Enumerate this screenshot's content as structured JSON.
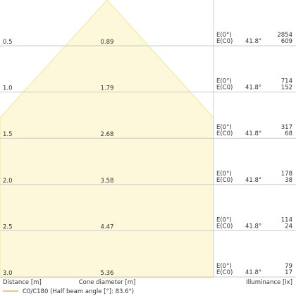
{
  "rows": [
    {
      "distance": "0.5",
      "diameter": "0.89",
      "label_top": "E(0°)",
      "label_bottom": "E(C0)",
      "angle": "41.8°",
      "value_top": "2854",
      "value_bottom": "609"
    },
    {
      "distance": "1.0",
      "diameter": "1.79",
      "label_top": "E(0°)",
      "label_bottom": "E(C0)",
      "angle": "41.8°",
      "value_top": "714",
      "value_bottom": "152"
    },
    {
      "distance": "1.5",
      "diameter": "2.68",
      "label_top": "E(0°)",
      "label_bottom": "E(C0)",
      "angle": "41.8°",
      "value_top": "317",
      "value_bottom": "68"
    },
    {
      "distance": "2.0",
      "diameter": "3.58",
      "label_top": "E(0°)",
      "label_bottom": "E(C0)",
      "angle": "41.8°",
      "value_top": "178",
      "value_bottom": "38"
    },
    {
      "distance": "2.5",
      "diameter": "4.47",
      "label_top": "E(0°)",
      "label_bottom": "E(C0)",
      "angle": "41.8°",
      "value_top": "114",
      "value_bottom": "24"
    },
    {
      "distance": "3.0",
      "diameter": "5.36",
      "label_top": "E(0°)",
      "label_bottom": "E(C0)",
      "angle": "41.8°",
      "value_top": "79",
      "value_bottom": "17"
    }
  ],
  "footer": {
    "distance_label": "Distance [m]",
    "diameter_label": "Cone diameter [m]",
    "illuminance_label": "Illuminance [lx]"
  },
  "legend": {
    "label": "C0/C180 (Half beam angle [°]: 83.6°)"
  }
}
